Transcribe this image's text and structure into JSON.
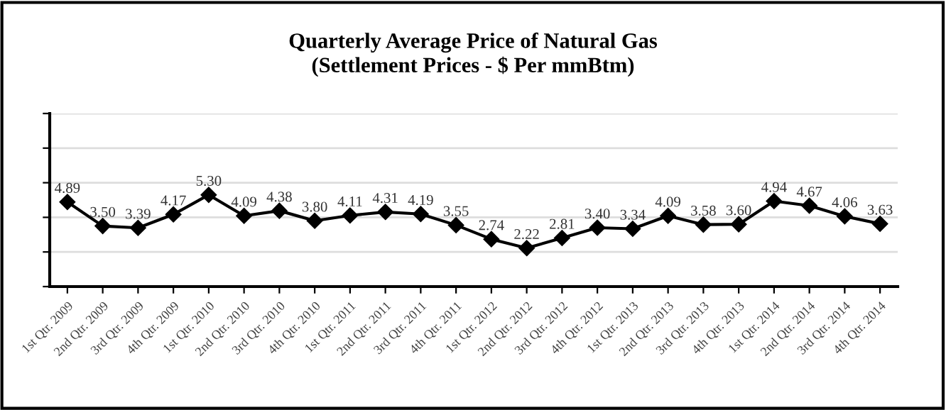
{
  "chart_data": {
    "type": "line",
    "title": "Quarterly Average Price of Natural Gas",
    "subtitle": "(Settlement Prices - $ Per mmBtm)",
    "categories": [
      "1st Qtr. 2009",
      "2nd Qtr. 2009",
      "3rd Qtr. 2009",
      "4th Qtr. 2009",
      "1st Qtr. 2010",
      "2nd Qtr. 2010",
      "3rd Qtr. 2010",
      "4th Qtr. 2010",
      "1st Qtr. 2011",
      "2nd Qtr. 2011",
      "3rd Qtr. 2011",
      "4th Qtr. 2011",
      "1st Qtr. 2012",
      "2nd Qtr. 2012",
      "3rd Qtr. 2012",
      "4th Qtr. 2012",
      "1st Qtr. 2013",
      "2nd Qtr. 2013",
      "3rd Qtr. 2013",
      "4th Qtr. 2013",
      "1st Qtr. 2014",
      "2nd Qtr. 2014",
      "3rd Qtr. 2014",
      "4th Qtr. 2014"
    ],
    "series": [
      {
        "color": "#000000",
        "values": [
          4.89,
          3.5,
          3.39,
          4.17,
          5.3,
          4.09,
          4.38,
          3.8,
          4.11,
          4.31,
          4.19,
          3.55,
          2.74,
          2.22,
          2.81,
          3.4,
          3.34,
          4.09,
          3.58,
          3.6,
          4.94,
          4.67,
          4.06,
          3.63
        ],
        "value_labels": [
          "4.89",
          "3.50",
          "3.39",
          "4.17",
          "5.30",
          "4.09",
          "4.38",
          "3.80",
          "4.11",
          "4.31",
          "4.19",
          "3.55",
          "2.74",
          "2.22",
          "2.81",
          "3.40",
          "3.34",
          "4.09",
          "3.58",
          "3.60",
          "4.94",
          "4.67",
          "4.06",
          "3.63"
        ]
      }
    ],
    "ylim": [
      0,
      10
    ],
    "yticks": [
      {
        "value": 0,
        "label": null
      },
      {
        "value": 2,
        "label": null
      },
      {
        "value": 4,
        "label": null
      },
      {
        "value": 6,
        "label": null
      },
      {
        "value": 8,
        "label": null
      },
      {
        "value": 10,
        "label": null
      }
    ],
    "tick_labels": "x",
    "grid": "y",
    "marker": "diamond",
    "line_style": "solid",
    "legend": false
  }
}
